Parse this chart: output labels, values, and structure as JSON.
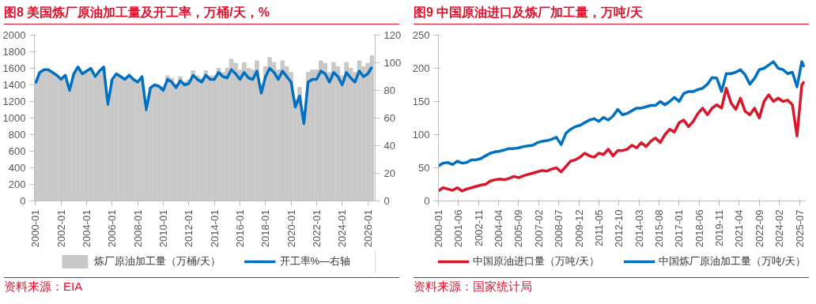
{
  "chart_data": [
    {
      "type": "bar",
      "title": "图8  美国炼厂原油加工量及开工率，万桶/天，%",
      "annotations": [
        "资料来源：EIA"
      ],
      "legend": "bottom",
      "ylim": [
        0,
        2000
      ],
      "yticks": [
        0,
        200,
        400,
        600,
        800,
        1000,
        1200,
        1400,
        1600,
        1800,
        2000
      ],
      "y2lim": [
        0,
        120
      ],
      "y2ticks": [
        0,
        20,
        40,
        60,
        80,
        100,
        120
      ],
      "xlim": [
        "1999-12",
        "2026-08"
      ],
      "xticks": [
        "2000-01",
        "2002-01",
        "2004-01",
        "2006-01",
        "2008-01",
        "2010-01",
        "2012-01",
        "2014-01",
        "2016-01",
        "2018-01",
        "2020-01",
        "2022-01",
        "2024-01",
        "2026-01"
      ],
      "x": [
        "2000-01",
        "2000-05",
        "2000-09",
        "2001-01",
        "2001-05",
        "2001-09",
        "2002-01",
        "2002-05",
        "2002-09",
        "2003-01",
        "2003-05",
        "2003-09",
        "2004-01",
        "2004-05",
        "2004-09",
        "2005-01",
        "2005-05",
        "2005-09",
        "2006-01",
        "2006-05",
        "2006-09",
        "2007-01",
        "2007-05",
        "2007-09",
        "2008-01",
        "2008-05",
        "2008-09",
        "2009-01",
        "2009-05",
        "2009-09",
        "2010-01",
        "2010-05",
        "2010-09",
        "2011-01",
        "2011-05",
        "2011-09",
        "2012-01",
        "2012-05",
        "2012-09",
        "2013-01",
        "2013-05",
        "2013-09",
        "2014-01",
        "2014-05",
        "2014-09",
        "2015-01",
        "2015-05",
        "2015-09",
        "2016-01",
        "2016-05",
        "2016-09",
        "2017-01",
        "2017-05",
        "2017-09",
        "2018-01",
        "2018-05",
        "2018-09",
        "2019-01",
        "2019-05",
        "2019-09",
        "2020-01",
        "2020-05",
        "2020-09",
        "2021-01",
        "2021-05",
        "2021-09",
        "2022-01",
        "2022-05",
        "2022-09",
        "2023-01",
        "2023-05",
        "2023-09",
        "2024-01",
        "2024-05",
        "2024-09",
        "2025-01",
        "2025-05",
        "2025-09",
        "2026-01",
        "2026-05"
      ],
      "series": [
        {
          "name": "炼厂原油加工量（万桶/天）",
          "type": "bar",
          "color": "#c8c8c8",
          "values": [
            1410,
            1540,
            1580,
            1580,
            1540,
            1510,
            1460,
            1510,
            1330,
            1530,
            1610,
            1530,
            1560,
            1590,
            1490,
            1560,
            1610,
            1160,
            1460,
            1530,
            1490,
            1460,
            1510,
            1460,
            1430,
            1490,
            1100,
            1360,
            1390,
            1380,
            1380,
            1510,
            1480,
            1410,
            1500,
            1440,
            1460,
            1570,
            1510,
            1480,
            1570,
            1510,
            1510,
            1600,
            1550,
            1600,
            1710,
            1660,
            1580,
            1670,
            1600,
            1580,
            1690,
            1400,
            1620,
            1730,
            1670,
            1580,
            1690,
            1620,
            1550,
            1220,
            1370,
            1010,
            1550,
            1580,
            1580,
            1690,
            1660,
            1550,
            1670,
            1620,
            1510,
            1670,
            1600,
            1550,
            1690,
            1620,
            1660,
            1750
          ]
        },
        {
          "name": "开工率%—右轴",
          "type": "line",
          "axis": "y2",
          "color": "#0070c0",
          "values": [
            85,
            93,
            95,
            95,
            93,
            91,
            88,
            91,
            80,
            92,
            97,
            92,
            94,
            96,
            90,
            94,
            97,
            70,
            88,
            92,
            90,
            88,
            91,
            88,
            86,
            90,
            66,
            82,
            84,
            83,
            80,
            88,
            86,
            82,
            87,
            84,
            85,
            91,
            88,
            86,
            91,
            88,
            88,
            93,
            90,
            89,
            95,
            92,
            88,
            93,
            89,
            88,
            94,
            78,
            90,
            96,
            93,
            88,
            94,
            90,
            86,
            68,
            76,
            56,
            86,
            88,
            88,
            94,
            92,
            86,
            93,
            90,
            84,
            93,
            89,
            86,
            94,
            90,
            92,
            97
          ]
        }
      ]
    },
    {
      "type": "line",
      "title": "图9  中国原油进口及炼厂加工量，万吨/天",
      "annotations": [
        "资料来源：国家统计局"
      ],
      "legend": "bottom",
      "ylim": [
        0,
        250
      ],
      "yticks": [
        0,
        50,
        100,
        150,
        200,
        250
      ],
      "xlim": [
        "2000-01",
        "2025-12"
      ],
      "xticks": [
        "2000-01",
        "2001-06",
        "2002-11",
        "2004-04",
        "2005-09",
        "2007-02",
        "2008-07",
        "2009-12",
        "2011-05",
        "2012-10",
        "2014-03",
        "2015-08",
        "2017-01",
        "2018-06",
        "2019-11",
        "2021-04",
        "2022-09",
        "2024-02",
        "2025-07"
      ],
      "x": [
        "2000-01",
        "2000-05",
        "2000-09",
        "2001-01",
        "2001-05",
        "2001-09",
        "2002-01",
        "2002-05",
        "2002-09",
        "2003-01",
        "2003-05",
        "2003-09",
        "2004-01",
        "2004-05",
        "2004-09",
        "2005-01",
        "2005-05",
        "2005-09",
        "2006-01",
        "2006-05",
        "2006-09",
        "2007-01",
        "2007-05",
        "2007-09",
        "2008-01",
        "2008-05",
        "2008-09",
        "2009-01",
        "2009-05",
        "2009-09",
        "2010-01",
        "2010-05",
        "2010-09",
        "2011-01",
        "2011-05",
        "2011-09",
        "2012-01",
        "2012-05",
        "2012-09",
        "2013-01",
        "2013-05",
        "2013-09",
        "2014-01",
        "2014-05",
        "2014-09",
        "2015-01",
        "2015-05",
        "2015-09",
        "2016-01",
        "2016-05",
        "2016-09",
        "2017-01",
        "2017-05",
        "2017-09",
        "2018-01",
        "2018-05",
        "2018-09",
        "2019-01",
        "2019-05",
        "2019-09",
        "2020-01",
        "2020-05",
        "2020-09",
        "2021-01",
        "2021-05",
        "2021-09",
        "2022-01",
        "2022-05",
        "2022-09",
        "2023-01",
        "2023-05",
        "2023-09",
        "2024-01",
        "2024-05",
        "2024-09",
        "2025-01",
        "2025-05",
        "2025-09",
        "2025-11"
      ],
      "series": [
        {
          "name": "中国原油进口量（万吨/天）",
          "color": "#d7182a",
          "values": [
            15,
            20,
            18,
            16,
            20,
            15,
            18,
            20,
            22,
            24,
            25,
            30,
            32,
            33,
            32,
            34,
            37,
            35,
            38,
            40,
            42,
            44,
            46,
            45,
            48,
            50,
            44,
            52,
            60,
            62,
            66,
            72,
            68,
            66,
            72,
            70,
            78,
            68,
            76,
            76,
            78,
            84,
            80,
            88,
            82,
            90,
            95,
            88,
            100,
            108,
            104,
            118,
            122,
            112,
            120,
            132,
            140,
            130,
            140,
            145,
            140,
            170,
            148,
            138,
            155,
            135,
            130,
            140,
            125,
            150,
            160,
            150,
            155,
            150,
            152,
            145,
            98,
            175,
            180
          ]
        },
        {
          "name": "中国炼厂原油加工量（万吨/天）",
          "color": "#0070c0",
          "values": [
            53,
            57,
            58,
            55,
            60,
            57,
            58,
            62,
            62,
            64,
            68,
            72,
            74,
            75,
            77,
            79,
            79,
            80,
            82,
            83,
            84,
            88,
            90,
            91,
            93,
            96,
            85,
            102,
            108,
            112,
            114,
            118,
            122,
            124,
            120,
            126,
            122,
            128,
            138,
            130,
            132,
            136,
            140,
            140,
            142,
            144,
            144,
            150,
            145,
            150,
            156,
            150,
            162,
            165,
            165,
            168,
            170,
            176,
            186,
            185,
            165,
            192,
            192,
            194,
            198,
            190,
            176,
            185,
            198,
            200,
            205,
            210,
            200,
            198,
            192,
            194,
            172,
            210,
            202
          ]
        }
      ]
    }
  ]
}
